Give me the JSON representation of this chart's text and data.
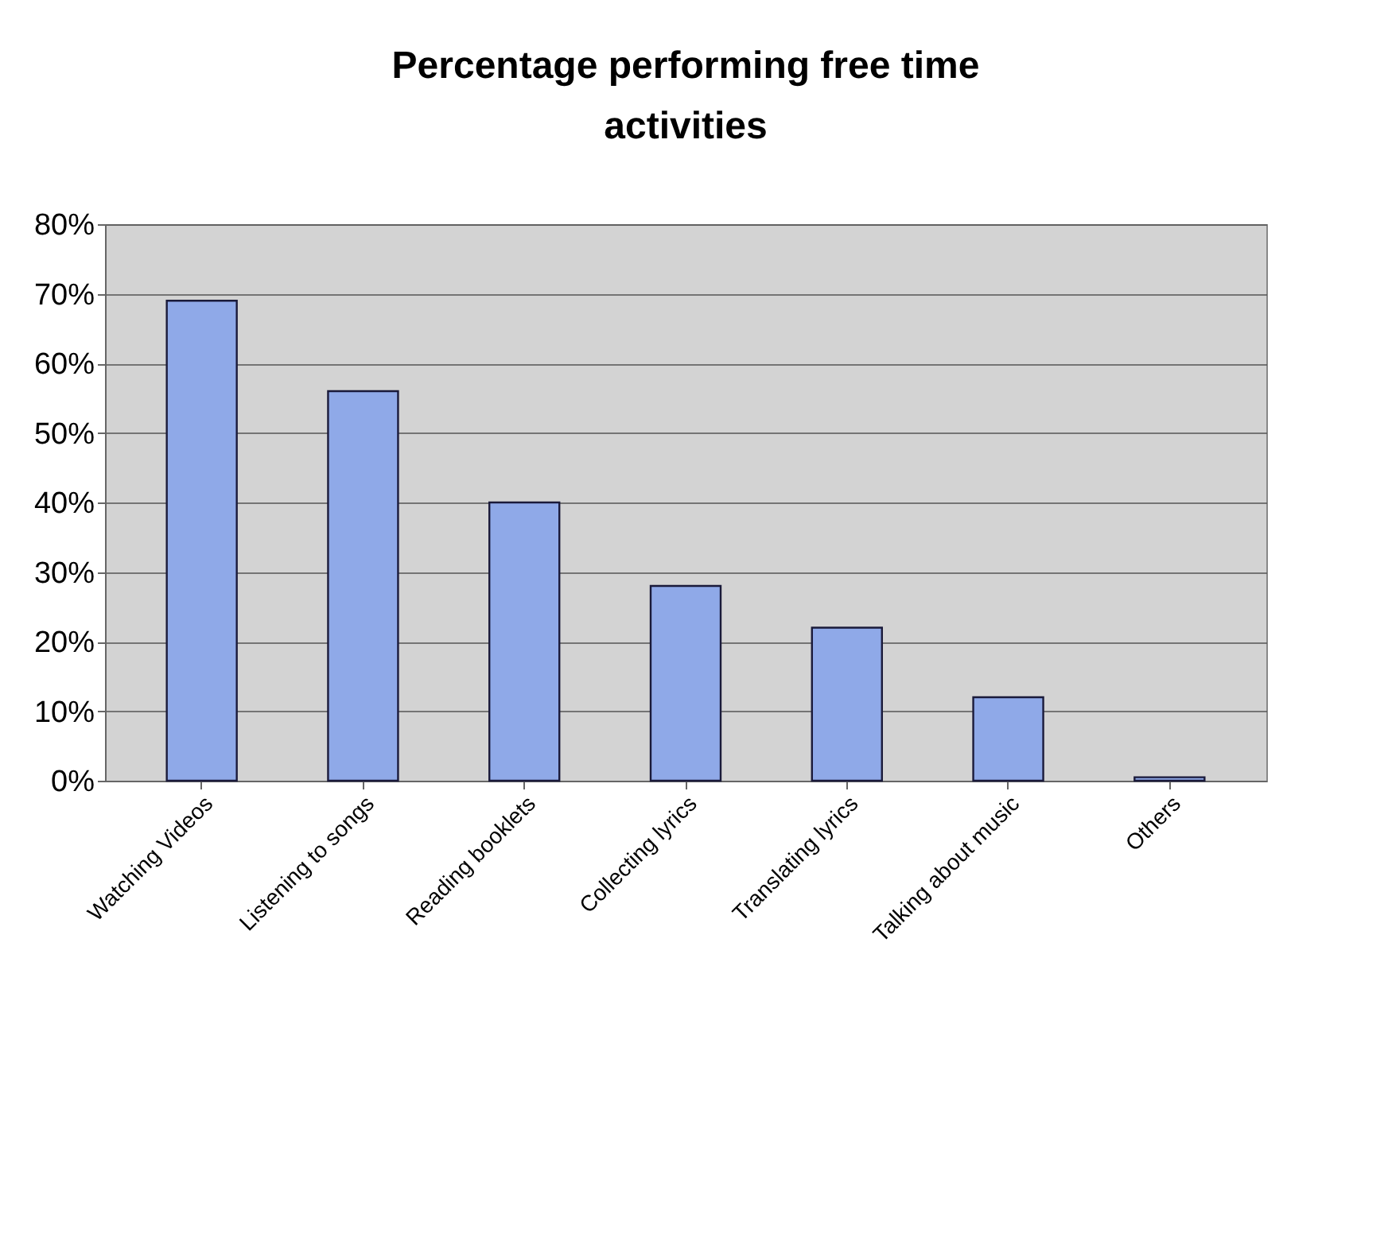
{
  "chart_data": {
    "type": "bar",
    "title": "Percentage performing free time activities",
    "categories": [
      "Watching Videos",
      "Listening to songs",
      "Reading booklets",
      "Collecting lyrics",
      "Translating lyrics",
      "Talking about music",
      "Others"
    ],
    "values": [
      0.69,
      0.56,
      0.4,
      0.28,
      0.22,
      0.12,
      0.005
    ],
    "color": "#8fa9e8",
    "ylim": [
      0,
      0.8
    ],
    "yticks": [
      {
        "value": 0,
        "label": "0%"
      },
      {
        "value": 0.1,
        "label": "10%"
      },
      {
        "value": 0.2,
        "label": "20%"
      },
      {
        "value": 0.3,
        "label": "30%"
      },
      {
        "value": 0.4,
        "label": "40%"
      },
      {
        "value": 0.5,
        "label": "50%"
      },
      {
        "value": 0.6,
        "label": "60%"
      },
      {
        "value": 0.7,
        "label": "70%"
      },
      {
        "value": 0.8,
        "label": "80%"
      }
    ],
    "grid": "y"
  }
}
